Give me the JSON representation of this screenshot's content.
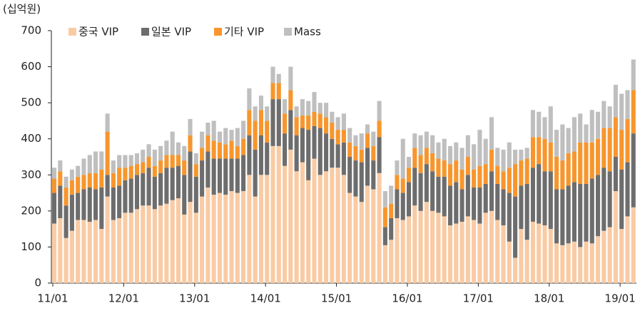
{
  "chart_data": {
    "type": "stacked_bar",
    "unit_label": "(십억원)",
    "categories": [
      "11/01",
      null,
      null,
      null,
      null,
      null,
      null,
      null,
      null,
      null,
      null,
      null,
      "12/01",
      null,
      null,
      null,
      null,
      null,
      null,
      null,
      null,
      null,
      null,
      null,
      "13/01",
      null,
      null,
      null,
      null,
      null,
      null,
      null,
      null,
      null,
      null,
      null,
      "14/01",
      null,
      null,
      null,
      null,
      null,
      null,
      null,
      null,
      null,
      null,
      null,
      "15/01",
      null,
      null,
      null,
      null,
      null,
      null,
      null,
      null,
      null,
      null,
      null,
      "16/01",
      null,
      null,
      null,
      null,
      null,
      null,
      null,
      null,
      null,
      null,
      null,
      "17/01",
      null,
      null,
      null,
      null,
      null,
      null,
      null,
      null,
      null,
      null,
      null,
      "18/01",
      null,
      null,
      null,
      null,
      null,
      null,
      null,
      null,
      null,
      null,
      null,
      "19/01",
      null,
      null
    ],
    "series": [
      {
        "name": "중국 VIP",
        "color": "#f9cba4",
        "values": [
          165,
          180,
          125,
          145,
          175,
          175,
          170,
          175,
          150,
          240,
          175,
          180,
          195,
          195,
          205,
          215,
          215,
          205,
          215,
          220,
          230,
          235,
          190,
          225,
          195,
          240,
          265,
          245,
          250,
          245,
          255,
          250,
          255,
          300,
          240,
          300,
          300,
          380,
          380,
          325,
          370,
          310,
          335,
          285,
          345,
          300,
          310,
          320,
          320,
          300,
          250,
          240,
          225,
          270,
          260,
          305,
          105,
          120,
          180,
          175,
          185,
          215,
          200,
          225,
          200,
          195,
          185,
          160,
          165,
          170,
          185,
          175,
          165,
          195,
          200,
          175,
          160,
          115,
          70,
          150,
          120,
          170,
          165,
          160,
          150,
          110,
          105,
          110,
          115,
          100,
          115,
          110,
          130,
          145,
          155,
          255,
          150,
          185,
          210
        ]
      },
      {
        "name": "일본 VIP",
        "color": "#6d6d6d",
        "values": [
          85,
          90,
          90,
          100,
          75,
          85,
          95,
          85,
          115,
          60,
          90,
          90,
          90,
          95,
          95,
          90,
          105,
          90,
          90,
          100,
          90,
          90,
          110,
          140,
          100,
          100,
          100,
          100,
          95,
          100,
          90,
          95,
          100,
          110,
          130,
          110,
          90,
          130,
          130,
          90,
          110,
          100,
          95,
          140,
          90,
          130,
          105,
          80,
          65,
          90,
          100,
          100,
          110,
          105,
          80,
          100,
          50,
          60,
          80,
          75,
          95,
          105,
          105,
          105,
          110,
          100,
          110,
          110,
          115,
          90,
          115,
          90,
          100,
          80,
          110,
          100,
          100,
          135,
          170,
          120,
          155,
          150,
          165,
          150,
          160,
          150,
          155,
          160,
          165,
          175,
          160,
          180,
          170,
          175,
          155,
          95,
          165,
          150,
          205
        ]
      },
      {
        "name": "기타 VIP",
        "color": "#f7962d",
        "values": [
          40,
          40,
          50,
          40,
          45,
          40,
          40,
          45,
          50,
          120,
          40,
          50,
          35,
          35,
          30,
          30,
          30,
          30,
          35,
          35,
          35,
          30,
          40,
          45,
          35,
          35,
          45,
          50,
          45,
          40,
          50,
          35,
          45,
          70,
          80,
          70,
          60,
          45,
          45,
          55,
          55,
          50,
          35,
          40,
          40,
          40,
          45,
          45,
          40,
          35,
          40,
          40,
          35,
          40,
          40,
          45,
          55,
          40,
          40,
          40,
          40,
          55,
          50,
          45,
          50,
          50,
          45,
          60,
          60,
          55,
          50,
          50,
          60,
          55,
          60,
          50,
          50,
          70,
          90,
          70,
          70,
          85,
          75,
          90,
          80,
          90,
          80,
          90,
          85,
          115,
          115,
          100,
          100,
          110,
          120,
          110,
          110,
          120,
          120
        ]
      },
      {
        "name": "Mass",
        "color": "#bfbfbf",
        "values": [
          30,
          30,
          30,
          30,
          30,
          45,
          50,
          60,
          50,
          50,
          35,
          35,
          35,
          30,
          30,
          35,
          35,
          45,
          40,
          40,
          65,
          35,
          40,
          45,
          30,
          45,
          35,
          55,
          30,
          45,
          30,
          50,
          50,
          60,
          40,
          40,
          40,
          45,
          25,
          40,
          65,
          30,
          45,
          40,
          55,
          30,
          40,
          30,
          35,
          45,
          40,
          30,
          45,
          25,
          40,
          55,
          45,
          50,
          40,
          110,
          30,
          40,
          55,
          45,
          50,
          45,
          60,
          50,
          50,
          60,
          60,
          70,
          100,
          70,
          90,
          50,
          60,
          70,
          40,
          30,
          30,
          75,
          70,
          60,
          100,
          75,
          100,
          70,
          95,
          80,
          50,
          90,
          75,
          75,
          60,
          90,
          100,
          80,
          85
        ]
      }
    ],
    "ylim": [
      0,
      700
    ],
    "yticks": [
      0,
      100,
      200,
      300,
      400,
      500,
      600,
      700
    ]
  }
}
